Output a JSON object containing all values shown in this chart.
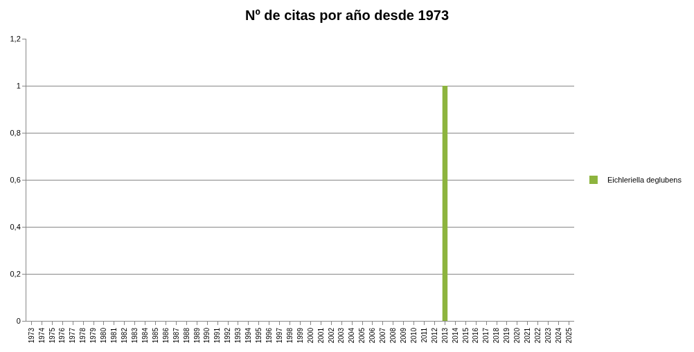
{
  "chart_data": {
    "type": "bar",
    "title": "Nº de citas por año desde 1973",
    "categories": [
      "1973",
      "1974",
      "1975",
      "1976",
      "1977",
      "1978",
      "1979",
      "1980",
      "1981",
      "1982",
      "1983",
      "1984",
      "1985",
      "1986",
      "1987",
      "1988",
      "1989",
      "1990",
      "1991",
      "1992",
      "1993",
      "1994",
      "1995",
      "1996",
      "1997",
      "1998",
      "1999",
      "2000",
      "2001",
      "2002",
      "2003",
      "2004",
      "2005",
      "2006",
      "2007",
      "2008",
      "2009",
      "2010",
      "2011",
      "2012",
      "2013",
      "2014",
      "2015",
      "2016",
      "2017",
      "2018",
      "2019",
      "2020",
      "2021",
      "2022",
      "2023",
      "2024",
      "2025"
    ],
    "series": [
      {
        "name": "Eichleriella deglubens",
        "color": "#8db43e",
        "values": [
          0,
          0,
          0,
          0,
          0,
          0,
          0,
          0,
          0,
          0,
          0,
          0,
          0,
          0,
          0,
          0,
          0,
          0,
          0,
          0,
          0,
          0,
          0,
          0,
          0,
          0,
          0,
          0,
          0,
          0,
          0,
          0,
          0,
          0,
          0,
          0,
          0,
          0,
          0,
          0,
          1,
          0,
          0,
          0,
          0,
          0,
          0,
          0,
          0,
          0,
          0,
          0,
          0
        ]
      }
    ],
    "ylim": [
      0,
      1.2
    ],
    "yticks": [
      0,
      {
        "value": 0.2,
        "label": "0,2"
      },
      {
        "value": 0.4,
        "label": "0,4"
      },
      {
        "value": 0.6,
        "label": "0,6"
      },
      {
        "value": 0.8,
        "label": "0,8"
      },
      1,
      {
        "value": 1.2,
        "label": "1,2"
      }
    ],
    "grid": "y",
    "legend": "right"
  }
}
